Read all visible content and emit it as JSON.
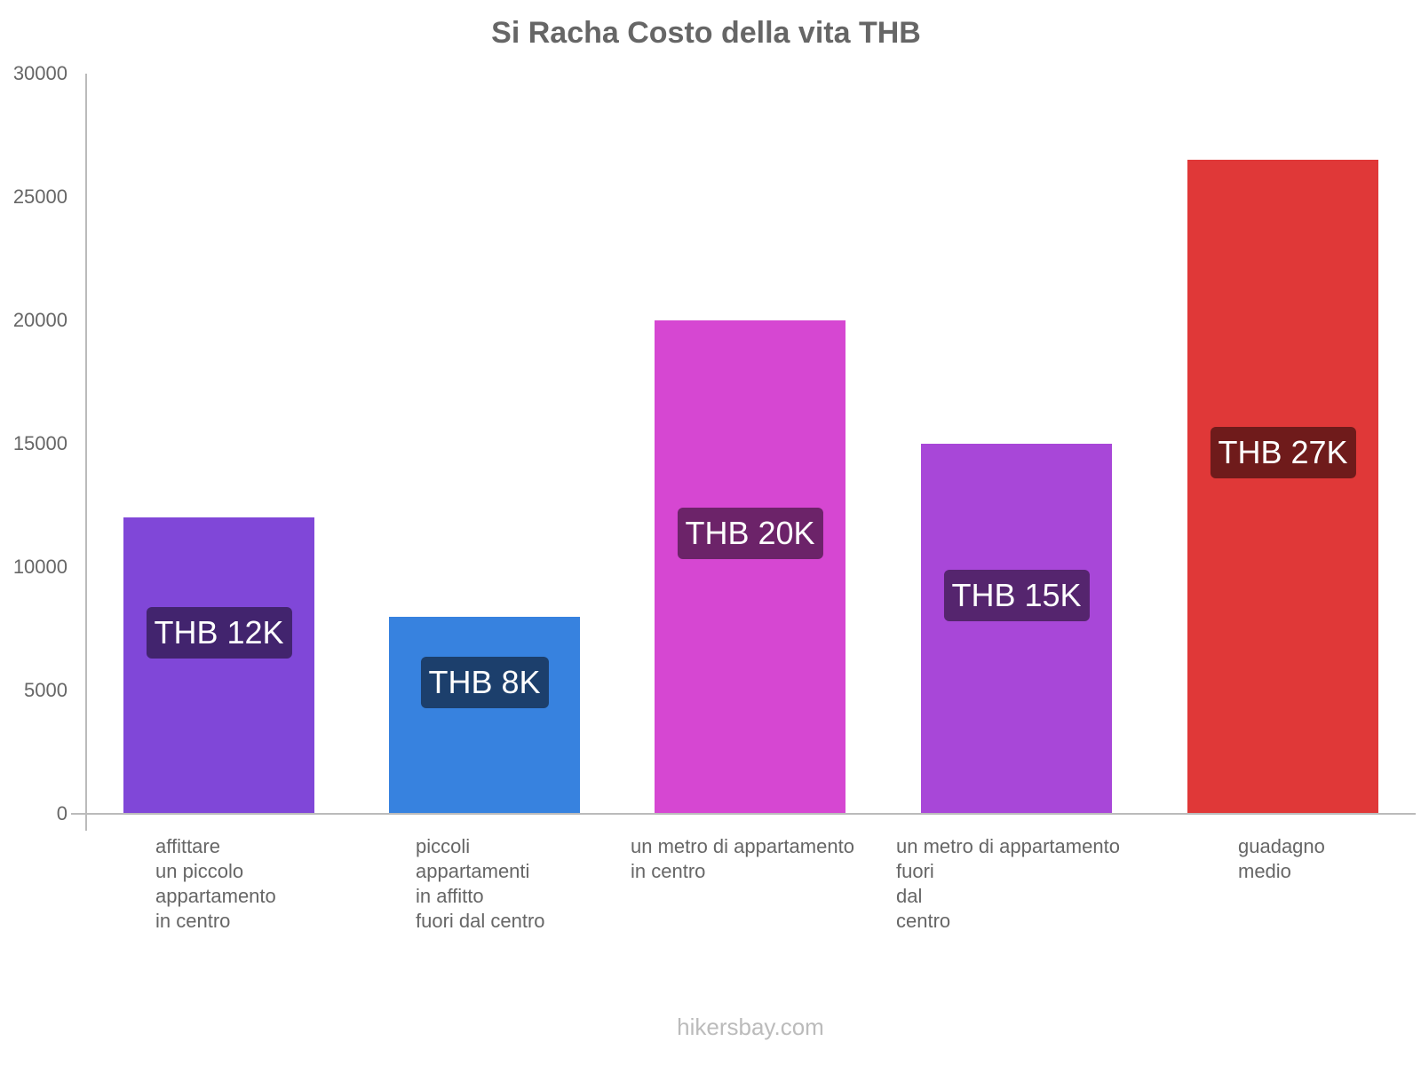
{
  "chart_data": {
    "type": "bar",
    "title": "Si Racha Costo della vita THB",
    "xlabel": "",
    "ylabel": "",
    "ylim": [
      0,
      30000
    ],
    "yticks": [
      0,
      5000,
      10000,
      15000,
      20000,
      25000,
      30000
    ],
    "grid": false,
    "legend": null,
    "categories": [
      "affittare un piccolo appartamento in centro",
      "piccoli appartamenti in affitto fuori dal centro",
      "un metro di appartamento in centro",
      "un metro di appartamento fuori dal centro",
      "guadagno medio"
    ],
    "values": [
      12000,
      8000,
      20000,
      15000,
      26500
    ],
    "data_labels": [
      "THB 12K",
      "THB 8K",
      "THB 20K",
      "THB 15K",
      "THB 27K"
    ],
    "colors": [
      "#8047d8",
      "#3782df",
      "#d647d2",
      "#a847d8",
      "#e03838"
    ],
    "label_bg_colors": [
      "#42246e",
      "#1c3f6c",
      "#6c2369",
      "#55256e",
      "#6f1b1b"
    ]
  },
  "title": "Si Racha Costo della vita THB",
  "yticks": [
    "30000",
    "25000",
    "20000",
    "15000",
    "10000",
    "5000",
    "0"
  ],
  "xlabels": [
    "affittare\nun piccolo\nappartamento\nin centro",
    "piccoli\nappartamenti\nin affitto\nfuori dal centro",
    "un metro di appartamento\nin centro",
    "un metro di appartamento\nfuori\ndal\ncentro",
    "guadagno\nmedio"
  ],
  "footer": "hikersbay.com"
}
